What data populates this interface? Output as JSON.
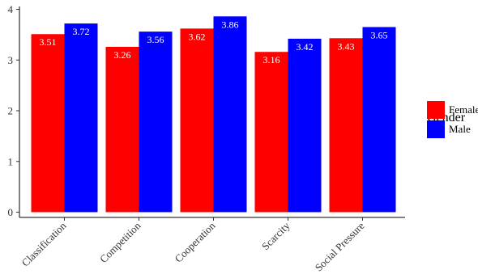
{
  "chart_data": {
    "type": "bar",
    "categories": [
      "Classification",
      "Competition",
      "Cooperation",
      "Scarcity",
      "Social Pressure"
    ],
    "series": [
      {
        "name": "Female",
        "color": "#ff0000",
        "values": [
          3.51,
          3.26,
          3.62,
          3.16,
          3.43
        ],
        "labels": [
          "3.51",
          "3.26",
          "3.62",
          "3.16",
          "3.43"
        ]
      },
      {
        "name": "Male",
        "color": "#0000ff",
        "values": [
          3.72,
          3.56,
          3.86,
          3.42,
          3.65
        ],
        "labels": [
          "3.72",
          "3.56",
          "3.86",
          "3.42",
          "3.65"
        ]
      }
    ],
    "ylim": [
      0,
      4.04
    ],
    "yticks": [
      0,
      1,
      2,
      3,
      4
    ],
    "ytick_labels": [
      "0",
      "1",
      "2",
      "3",
      "4"
    ],
    "grid": false,
    "legend": {
      "title": "Gender",
      "placement": "right"
    }
  }
}
